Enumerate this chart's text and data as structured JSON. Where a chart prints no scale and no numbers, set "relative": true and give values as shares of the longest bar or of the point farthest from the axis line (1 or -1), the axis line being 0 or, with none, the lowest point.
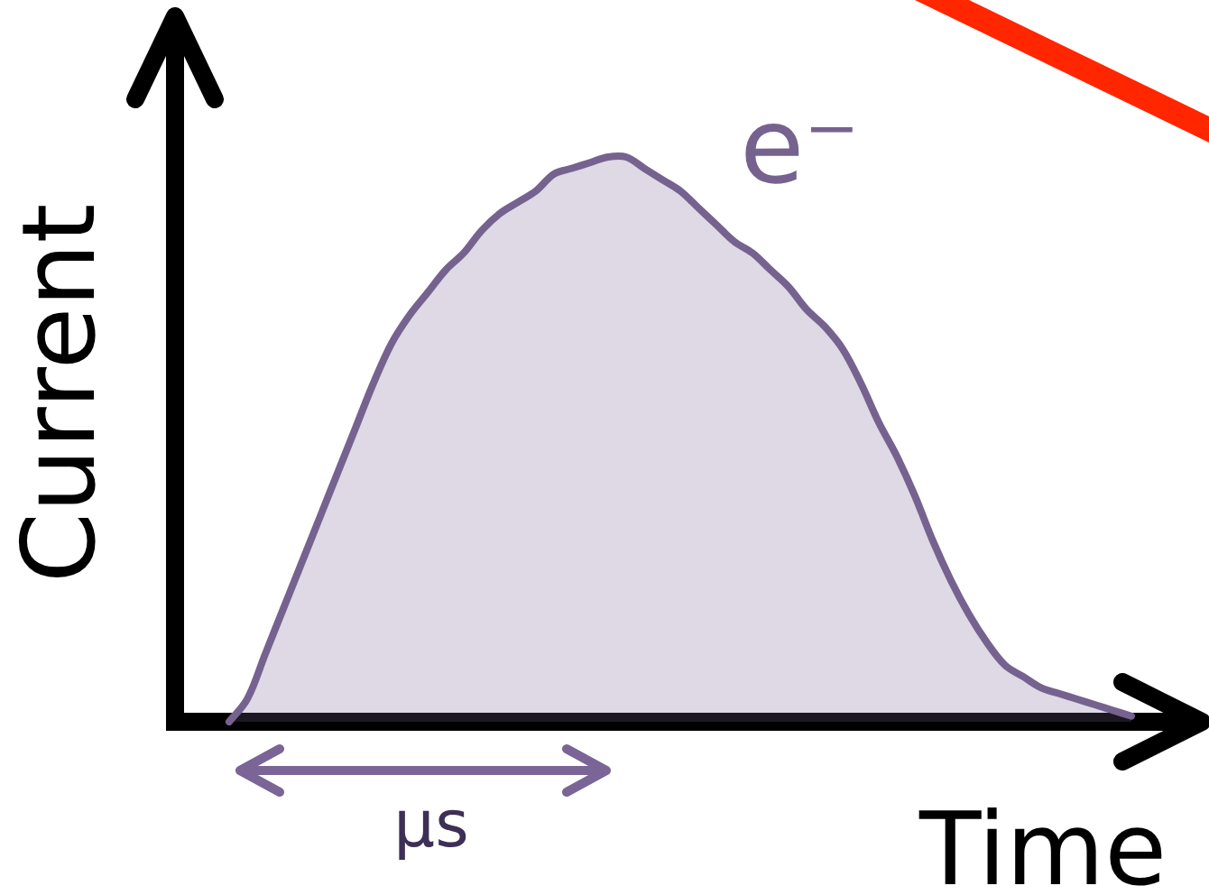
{
  "chart_data": {
    "type": "area",
    "relative": true,
    "xlabel": "Time",
    "ylabel": "Current",
    "annotations": [
      "μs"
    ],
    "tick_labels": false,
    "categories": [
      null,
      null,
      null,
      null,
      null,
      null,
      null,
      null,
      null,
      null,
      null,
      null,
      null,
      null,
      null,
      null,
      null,
      null,
      null,
      null,
      null,
      null,
      null,
      null,
      null,
      null,
      null,
      null,
      null,
      null,
      null,
      null,
      null,
      null,
      null,
      null,
      null,
      null,
      null,
      null,
      null,
      null,
      null,
      null,
      null,
      null,
      null,
      null,
      null,
      null,
      null,
      null,
      null,
      null,
      null,
      null,
      null
    ],
    "series": [
      {
        "name": "e⁻",
        "color": "#76628f",
        "values": [
          null,
          null,
          null,
          0,
          0.04,
          0.12,
          0.2,
          0.28,
          0.36,
          0.44,
          0.52,
          0.6,
          0.67,
          0.72,
          0.76,
          0.8,
          0.83,
          0.87,
          0.9,
          0.92,
          0.94,
          0.97,
          0.98,
          0.99,
          1,
          1,
          0.98,
          0.96,
          0.94,
          0.91,
          0.88,
          0.85,
          0.83,
          0.8,
          0.77,
          0.73,
          0.7,
          0.66,
          0.6,
          0.53,
          0.47,
          0.4,
          0.32,
          0.25,
          0.19,
          0.14,
          0.1,
          0.08,
          0.06,
          0.05,
          0.04,
          0.03,
          0.02,
          0.01,
          null,
          null,
          null
        ]
      }
    ]
  }
}
